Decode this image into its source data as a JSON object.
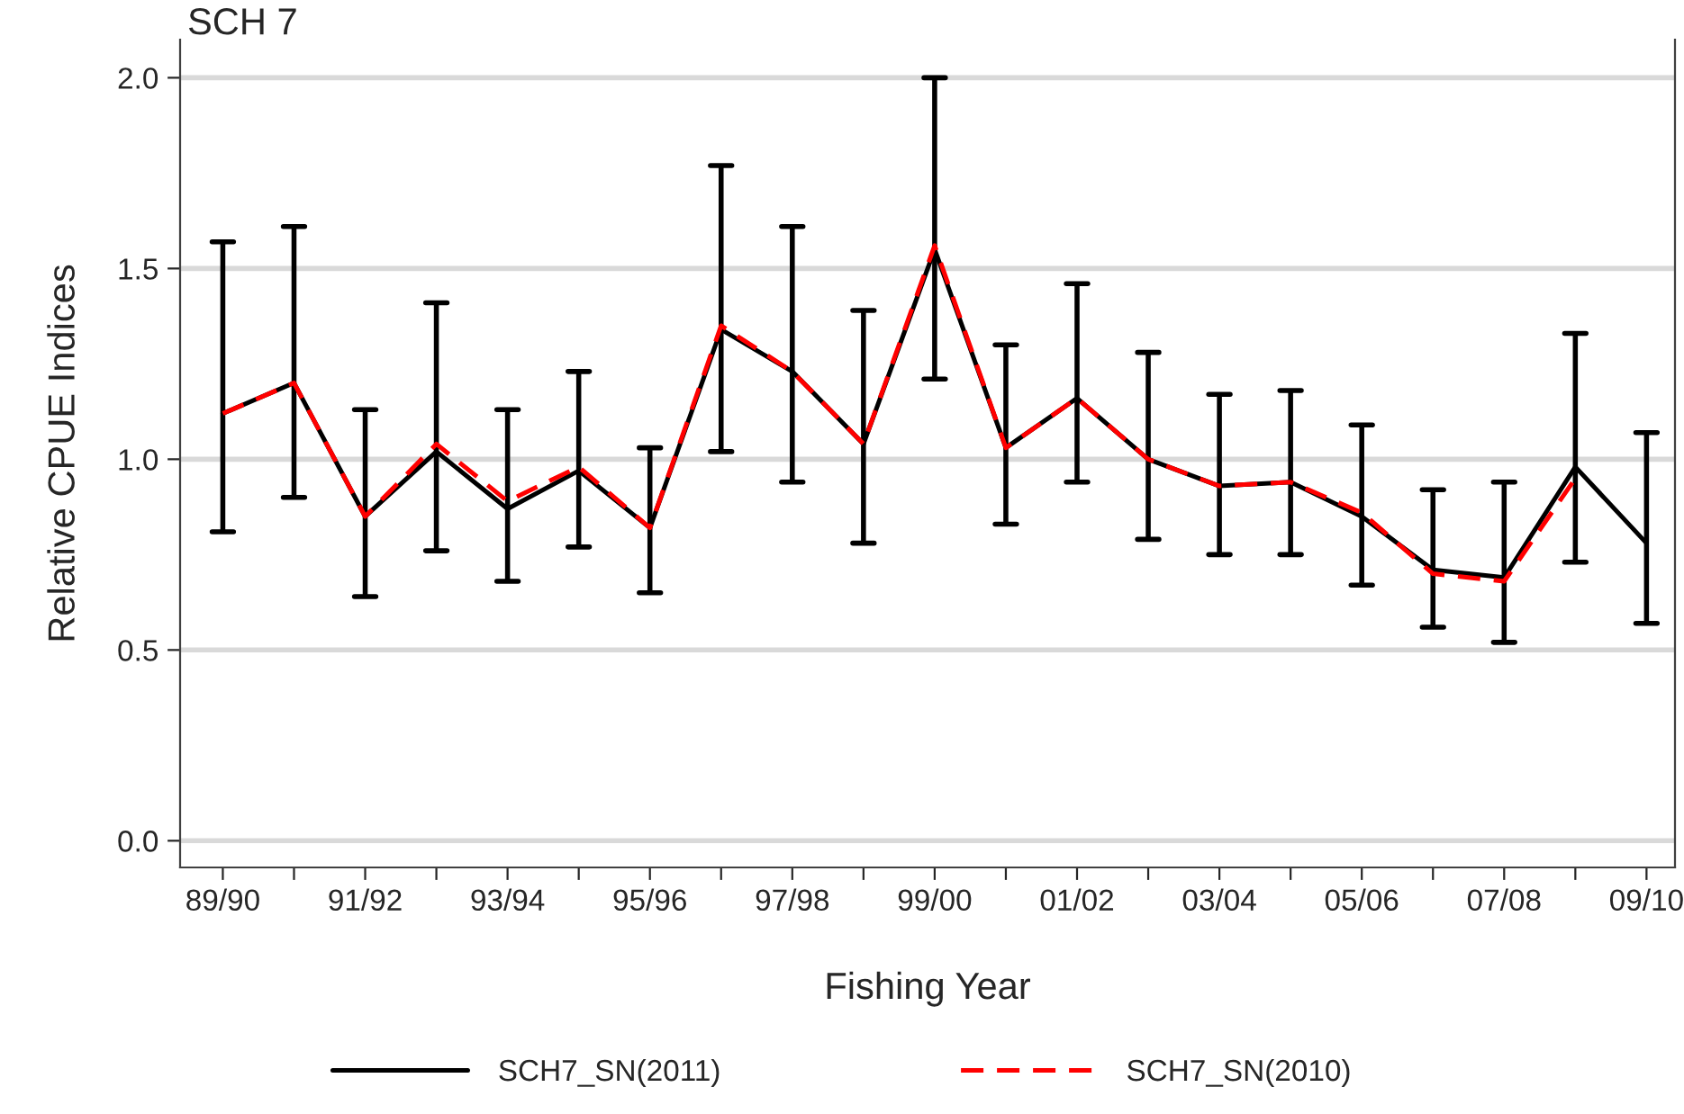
{
  "chart_data": {
    "type": "line",
    "title": "SCH 7",
    "xlabel": "Fishing Year",
    "ylabel": "Relative CPUE Indices",
    "categories": [
      "89/90",
      null,
      "91/92",
      null,
      "93/94",
      null,
      "95/96",
      null,
      "97/98",
      null,
      "99/00",
      null,
      "01/02",
      null,
      "03/04",
      null,
      "05/06",
      null,
      "07/08",
      null,
      "09/10"
    ],
    "series": [
      {
        "name": "SCH7_SN(2011)",
        "color": "#000000",
        "line_style": "solid",
        "values": [
          1.12,
          1.2,
          0.85,
          1.02,
          0.87,
          0.97,
          0.82,
          1.34,
          1.23,
          1.04,
          1.55,
          1.03,
          1.16,
          1.0,
          0.93,
          0.94,
          0.85,
          0.71,
          0.69,
          0.98,
          0.78
        ],
        "errors": [
          [
            0.81,
            1.57
          ],
          [
            0.9,
            1.61
          ],
          [
            0.64,
            1.13
          ],
          [
            0.76,
            1.41
          ],
          [
            0.68,
            1.13
          ],
          [
            0.77,
            1.23
          ],
          [
            0.65,
            1.03
          ],
          [
            1.02,
            1.77
          ],
          [
            0.94,
            1.61
          ],
          [
            0.78,
            1.39
          ],
          [
            1.21,
            2.0
          ],
          [
            0.83,
            1.3
          ],
          [
            0.94,
            1.46
          ],
          [
            0.79,
            1.28
          ],
          [
            0.75,
            1.17
          ],
          [
            0.75,
            1.18
          ],
          [
            0.67,
            1.09
          ],
          [
            0.56,
            0.92
          ],
          [
            0.52,
            0.94
          ],
          [
            0.73,
            1.33
          ],
          [
            0.57,
            1.07
          ]
        ]
      },
      {
        "name": "SCH7_SN(2010)",
        "color": "#ff0000",
        "line_style": "dashed",
        "values": [
          1.12,
          1.2,
          0.85,
          1.04,
          0.89,
          0.98,
          0.82,
          1.35,
          1.23,
          1.04,
          1.56,
          1.03,
          1.16,
          1.0,
          0.93,
          0.94,
          0.86,
          0.7,
          0.68,
          0.95,
          null
        ]
      }
    ],
    "ylim": [
      -0.07,
      2.1
    ],
    "yticks": [
      {
        "value": 0,
        "label": "0.0"
      },
      {
        "value": 0.5,
        "label": "0.5"
      },
      {
        "value": 1,
        "label": "1.0"
      },
      {
        "value": 1.5,
        "label": "1.5"
      },
      {
        "value": 2,
        "label": "2.0"
      }
    ],
    "grid": "y",
    "legend": "bottom",
    "marker": "none"
  }
}
